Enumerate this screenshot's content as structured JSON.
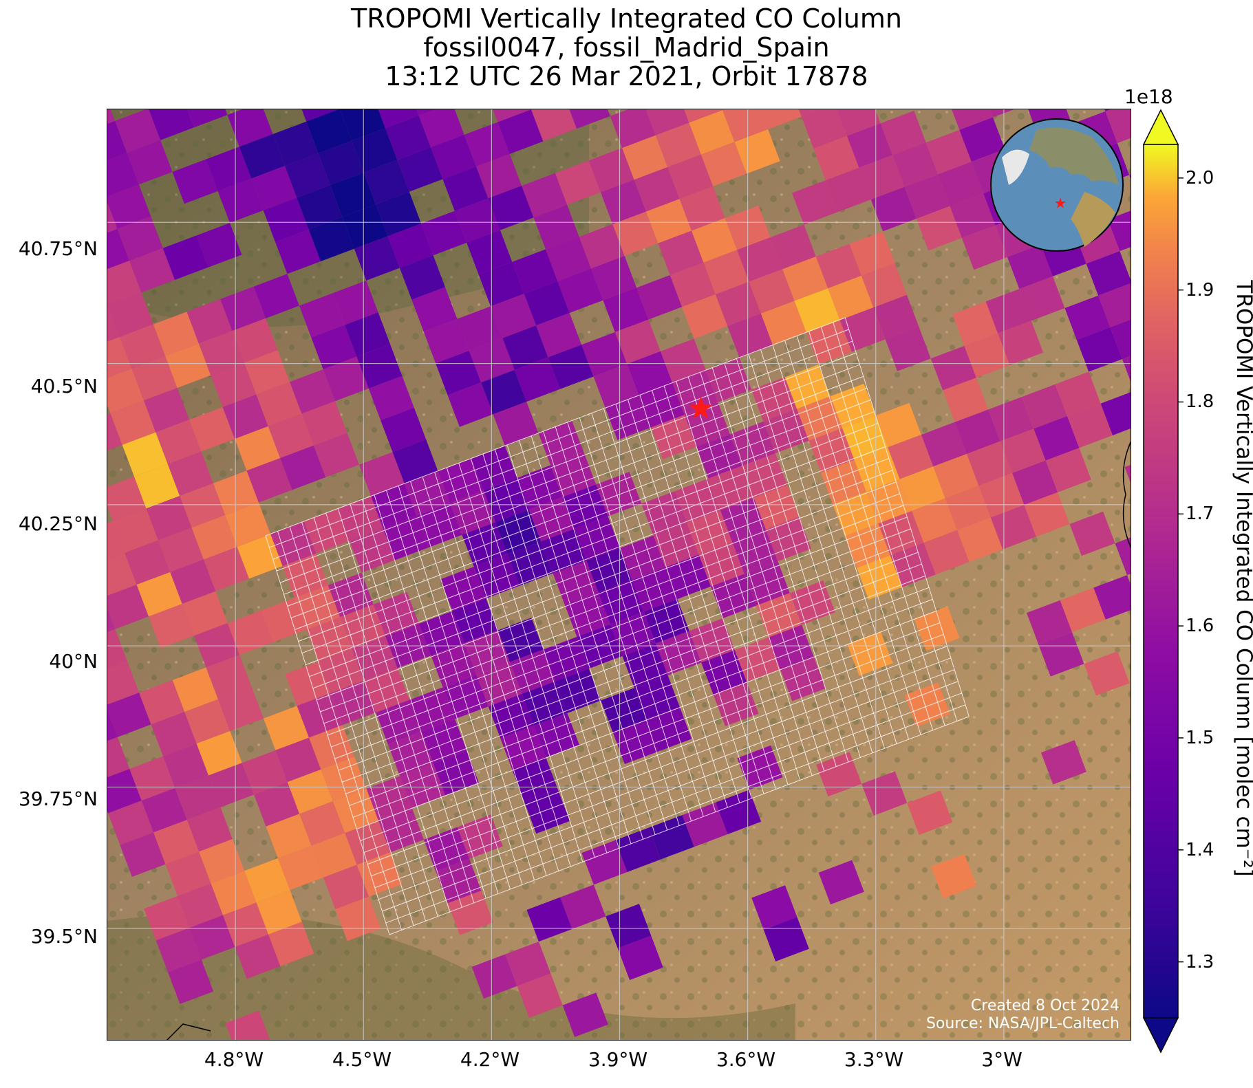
{
  "title": {
    "line1": "TROPOMI Vertically Integrated CO Column",
    "line2": "fossil0047, fossil_Madrid_Spain",
    "line3": "13:12 UTC 26 Mar 2021, Orbit 17878"
  },
  "map": {
    "lat_ticks": [
      "40.75°N",
      "40.5°N",
      "40.25°N",
      "40°N",
      "39.75°N",
      "39.5°N"
    ],
    "lon_ticks": [
      "4.8°W",
      "4.5°W",
      "4.2°W",
      "3.9°W",
      "3.6°W",
      "3.3°W",
      "3°W"
    ],
    "target_site": {
      "name_icon": "star-icon",
      "color": "#ff1a1a",
      "lon": -3.71,
      "lat": 40.42
    },
    "extent": {
      "lon_min": -5.1,
      "lon_max": -2.7,
      "lat_min": 39.3,
      "lat_max": 40.95
    },
    "credits": {
      "line1": "Created 8 Oct 2024",
      "line2": "Source: NASA/JPL-Caltech"
    }
  },
  "colorbar": {
    "exponent": "1e18",
    "label": "TROPOMI Vertically Integrated CO Column [molec cm⁻²]",
    "ticks": [
      "1.3",
      "1.4",
      "1.5",
      "1.6",
      "1.7",
      "1.8",
      "1.9",
      "2.0"
    ],
    "vmin": 1.25,
    "vmax": 2.03,
    "colormap": "plasma"
  },
  "globe": {
    "icon": "globe-icon",
    "marker_color": "#ff1a1a"
  }
}
